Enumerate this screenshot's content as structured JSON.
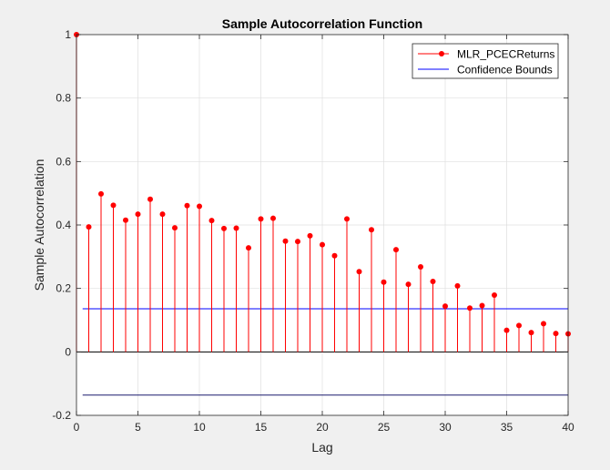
{
  "chart_data": {
    "type": "stem",
    "title": "Sample Autocorrelation Function",
    "xlabel": "Lag",
    "ylabel": "Sample Autocorrelation",
    "xlim": [
      0,
      40
    ],
    "ylim": [
      -0.2,
      1
    ],
    "xticks": [
      0,
      5,
      10,
      15,
      20,
      25,
      30,
      35,
      40
    ],
    "yticks": [
      -0.2,
      0,
      0.2,
      0.4,
      0.6,
      0.8,
      1
    ],
    "xtick_labels": [
      "0",
      "5",
      "10",
      "15",
      "20",
      "25",
      "30",
      "35",
      "40"
    ],
    "ytick_labels": [
      "-0.2",
      "0",
      "0.2",
      "0.4",
      "0.6",
      "0.8",
      "1"
    ],
    "grid": true,
    "legend_position": "top-right",
    "series": [
      {
        "name": "MLR_PCECReturns",
        "color": "#ff0000",
        "lags": [
          0,
          1,
          2,
          3,
          4,
          5,
          6,
          7,
          8,
          9,
          10,
          11,
          12,
          13,
          14,
          15,
          16,
          17,
          18,
          19,
          20,
          21,
          22,
          23,
          24,
          25,
          26,
          27,
          28,
          29,
          30,
          31,
          32,
          33,
          34,
          35,
          36,
          37,
          38,
          39,
          40
        ],
        "values": [
          1.0,
          0.394,
          0.498,
          0.462,
          0.415,
          0.434,
          0.481,
          0.434,
          0.391,
          0.461,
          0.459,
          0.414,
          0.389,
          0.39,
          0.328,
          0.419,
          0.421,
          0.349,
          0.348,
          0.366,
          0.338,
          0.303,
          0.419,
          0.253,
          0.385,
          0.22,
          0.322,
          0.213,
          0.268,
          0.222,
          0.144,
          0.208,
          0.138,
          0.146,
          0.179,
          0.068,
          0.083,
          0.061,
          0.089,
          0.058,
          0.057
        ]
      },
      {
        "name": "Confidence Bounds",
        "color": "#0000ff",
        "upper": 0.136,
        "lower": -0.136,
        "x_start": 0.5,
        "x_end": 40
      }
    ]
  }
}
